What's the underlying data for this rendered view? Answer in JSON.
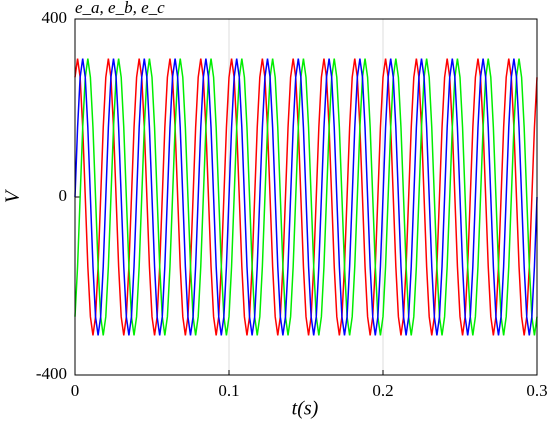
{
  "chart_data": {
    "type": "line",
    "title": "e_a, e_b, e_c",
    "xlabel": "t(s)",
    "ylabel": "V",
    "xlim": [
      0,
      0.3
    ],
    "xticks": [
      0,
      0.1,
      0.2,
      0.3
    ],
    "ylim": [
      -400,
      400
    ],
    "yticks": [
      -400,
      0,
      400
    ],
    "grid": "x",
    "x": [
      0,
      0.00167,
      0.00333,
      0.005,
      0.00667,
      0.00833,
      0.01,
      0.01167,
      0.01333,
      0.015,
      0.01667,
      0.01833,
      0.02,
      0.02167,
      0.02333,
      0.025,
      0.02667,
      0.02833,
      0.03,
      0.03167,
      0.03333,
      0.035,
      0.03667,
      0.03833,
      0.04,
      0.04167,
      0.04333,
      0.045,
      0.04667,
      0.04833,
      0.05,
      0.05167,
      0.05333,
      0.055,
      0.05667,
      0.05833,
      0.06,
      0.06167,
      0.06333,
      0.065,
      0.06667,
      0.06833,
      0.07,
      0.07167,
      0.07333,
      0.075,
      0.07667,
      0.07833,
      0.08,
      0.08167,
      0.08333,
      0.085,
      0.08667,
      0.08833,
      0.09,
      0.09167,
      0.09333,
      0.095,
      0.09667,
      0.09833,
      0.1,
      0.10167,
      0.10333,
      0.105,
      0.10667,
      0.10833,
      0.11,
      0.11167,
      0.11333,
      0.115,
      0.11667,
      0.11833,
      0.12,
      0.12167,
      0.12333,
      0.125,
      0.12667,
      0.12833,
      0.13,
      0.13167,
      0.13333,
      0.135,
      0.13667,
      0.13833,
      0.14,
      0.14167,
      0.14333,
      0.145,
      0.14667,
      0.14833,
      0.15,
      0.15167,
      0.15333,
      0.155,
      0.15667,
      0.15833,
      0.16,
      0.16167,
      0.16333,
      0.165,
      0.16667,
      0.16833,
      0.17,
      0.17167,
      0.17333,
      0.175,
      0.17667,
      0.17833,
      0.18,
      0.18167,
      0.18333,
      0.185,
      0.18667,
      0.18833,
      0.19,
      0.19167,
      0.19333,
      0.195,
      0.19667,
      0.19833,
      0.2,
      0.20167,
      0.20333,
      0.205,
      0.20667,
      0.20833,
      0.21,
      0.21167,
      0.21333,
      0.215,
      0.21667,
      0.21833,
      0.22,
      0.22167,
      0.22333,
      0.225,
      0.22667,
      0.22833,
      0.23,
      0.23167,
      0.23333,
      0.235,
      0.23667,
      0.23833,
      0.24,
      0.24167,
      0.24333,
      0.245,
      0.24667,
      0.24833,
      0.25,
      0.25167,
      0.25333,
      0.255,
      0.25667,
      0.25833,
      0.26,
      0.26167,
      0.26333,
      0.265,
      0.26667,
      0.26833,
      0.27,
      0.27167,
      0.27333,
      0.275,
      0.27667,
      0.27833,
      0.28,
      0.28167,
      0.28333,
      0.285,
      0.28667,
      0.28833,
      0.29,
      0.29167,
      0.29333,
      0.295,
      0.29667,
      0.29833,
      0.3
    ],
    "series": [
      {
        "color": "#ff0000",
        "values": [
          269,
          311,
          269,
          156,
          0,
          -156,
          -269,
          -311,
          -269,
          -156,
          0,
          156,
          269,
          311,
          269,
          156,
          0,
          -156,
          -269,
          -311,
          -269,
          -156,
          0,
          156,
          269,
          311,
          269,
          156,
          0,
          -156,
          -269,
          -311,
          -269,
          -156,
          0,
          156,
          269,
          311,
          269,
          156,
          0,
          -156,
          -269,
          -311,
          -269,
          -156,
          0,
          156,
          269,
          311,
          269,
          156,
          0,
          -156,
          -269,
          -311,
          -269,
          -156,
          0,
          156,
          269,
          311,
          269,
          156,
          0,
          -156,
          -269,
          -311,
          -269,
          -156,
          0,
          156,
          269,
          311,
          269,
          156,
          0,
          -156,
          -269,
          -311,
          -269,
          -156,
          0,
          156,
          269,
          311,
          269,
          156,
          0,
          -156,
          -269,
          -311,
          -269,
          -156,
          0,
          156,
          269,
          311,
          269,
          156,
          0,
          -156,
          -269,
          -311,
          -269,
          -156,
          0,
          156,
          269,
          311,
          269,
          156,
          0,
          -156,
          -269,
          -311,
          -269,
          -156,
          0,
          156,
          269,
          311,
          269,
          156,
          0,
          -156,
          -269,
          -311,
          -269,
          -156,
          0,
          156,
          269,
          311,
          269,
          156,
          0,
          -156,
          -269,
          -311,
          -269,
          -156,
          0,
          156,
          269,
          311,
          269,
          156,
          0,
          -156,
          -269,
          -311,
          -269,
          -156,
          0,
          156,
          269,
          311,
          269,
          156,
          0,
          -156,
          -269,
          -311,
          -269,
          -156,
          0,
          156,
          269,
          311,
          269,
          156,
          0,
          -156,
          -269,
          -311,
          -269,
          -156,
          0,
          156,
          269
        ]
      },
      {
        "color": "#00ee00",
        "values": [
          -269,
          -156,
          0,
          156,
          269,
          311,
          269,
          156,
          0,
          -156,
          -269,
          -311,
          -269,
          -156,
          0,
          156,
          269,
          311,
          269,
          156,
          0,
          -156,
          -269,
          -311,
          -269,
          -156,
          0,
          156,
          269,
          311,
          269,
          156,
          0,
          -156,
          -269,
          -311,
          -269,
          -156,
          0,
          156,
          269,
          311,
          269,
          156,
          0,
          -156,
          -269,
          -311,
          -269,
          -156,
          0,
          156,
          269,
          311,
          269,
          156,
          0,
          -156,
          -269,
          -311,
          -269,
          -156,
          0,
          156,
          269,
          311,
          269,
          156,
          0,
          -156,
          -269,
          -311,
          -269,
          -156,
          0,
          156,
          269,
          311,
          269,
          156,
          0,
          -156,
          -269,
          -311,
          -269,
          -156,
          0,
          156,
          269,
          311,
          269,
          156,
          0,
          -156,
          -269,
          -311,
          -269,
          -156,
          0,
          156,
          269,
          311,
          269,
          156,
          0,
          -156,
          -269,
          -311,
          -269,
          -156,
          0,
          156,
          269,
          311,
          269,
          156,
          0,
          -156,
          -269,
          -311,
          -269,
          -156,
          0,
          156,
          269,
          311,
          269,
          156,
          0,
          -156,
          -269,
          -311,
          -269,
          -156,
          0,
          156,
          269,
          311,
          269,
          156,
          0,
          -156,
          -269,
          -311,
          -269,
          -156,
          0,
          156,
          269,
          311,
          269,
          156,
          0,
          -156,
          -269,
          -311,
          -269,
          -156,
          0,
          156,
          269,
          311,
          269,
          156,
          0,
          -156,
          -269,
          -311,
          -269,
          -156,
          0,
          156,
          269,
          311,
          269,
          156,
          0,
          -156,
          -269,
          -311,
          -269
        ]
      },
      {
        "color": "#0000ff",
        "values": [
          0,
          156,
          269,
          311,
          269,
          156,
          0,
          -156,
          -269,
          -311,
          -269,
          -156,
          0,
          156,
          269,
          311,
          269,
          156,
          0,
          -156,
          -269,
          -311,
          -269,
          -156,
          0,
          156,
          269,
          311,
          269,
          156,
          0,
          -156,
          -269,
          -311,
          -269,
          -156,
          0,
          156,
          269,
          311,
          269,
          156,
          0,
          -156,
          -269,
          -311,
          -269,
          -156,
          0,
          156,
          269,
          311,
          269,
          156,
          0,
          -156,
          -269,
          -311,
          -269,
          -156,
          0,
          156,
          269,
          311,
          269,
          156,
          0,
          -156,
          -269,
          -311,
          -269,
          -156,
          0,
          156,
          269,
          311,
          269,
          156,
          0,
          -156,
          -269,
          -311,
          -269,
          -156,
          0,
          156,
          269,
          311,
          269,
          156,
          0,
          -156,
          -269,
          -311,
          -269,
          -156,
          0,
          156,
          269,
          311,
          269,
          156,
          0,
          -156,
          -269,
          -311,
          -269,
          -156,
          0,
          156,
          269,
          311,
          269,
          156,
          0,
          -156,
          -269,
          -311,
          -269,
          -156,
          0,
          156,
          269,
          311,
          269,
          156,
          0,
          -156,
          -269,
          -311,
          -269,
          -156,
          0,
          156,
          269,
          311,
          269,
          156,
          0,
          -156,
          -269,
          -311,
          -269,
          -156,
          0,
          156,
          269,
          311,
          269,
          156,
          0,
          -156,
          -269,
          -311,
          -269,
          -156,
          0,
          156,
          269,
          311,
          269,
          156,
          0,
          -156,
          -269,
          -311,
          -269,
          -156,
          0,
          156,
          269,
          311,
          269,
          156,
          0,
          -156,
          -269,
          -311,
          -269,
          -156,
          0
        ]
      }
    ]
  }
}
